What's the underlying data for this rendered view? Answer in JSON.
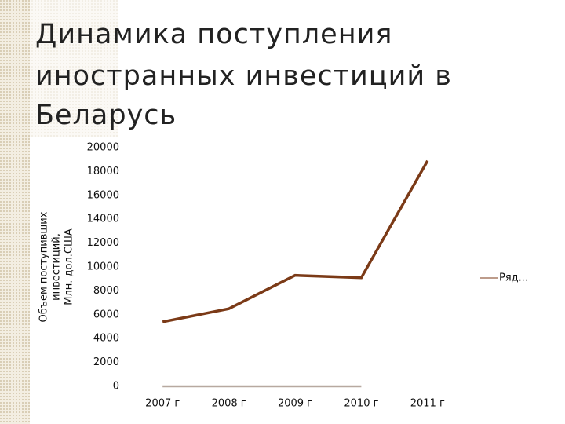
{
  "chart_data": {
    "type": "line",
    "title": [
      "Динамика поступления",
      "иностранных инвестиций в",
      "Беларусь"
    ],
    "ylabel": [
      "Объем поступивших",
      "инвестиций,",
      "Млн. дол.США"
    ],
    "categories": [
      "2007 г",
      "2008 г",
      "2009 г",
      "2010 г",
      "2011 г"
    ],
    "series": [
      {
        "name": "Ряд...",
        "color": "#7b3a17",
        "values": [
          5400,
          6500,
          9300,
          9100,
          18900
        ]
      },
      {
        "color": "#b7a9a0",
        "values": [
          0,
          0,
          0,
          0,
          null
        ]
      }
    ],
    "ylim": [
      0,
      20000
    ],
    "yticks": [
      0,
      2000,
      4000,
      6000,
      8000,
      10000,
      12000,
      14000,
      16000,
      18000,
      20000
    ],
    "legend": "right"
  }
}
